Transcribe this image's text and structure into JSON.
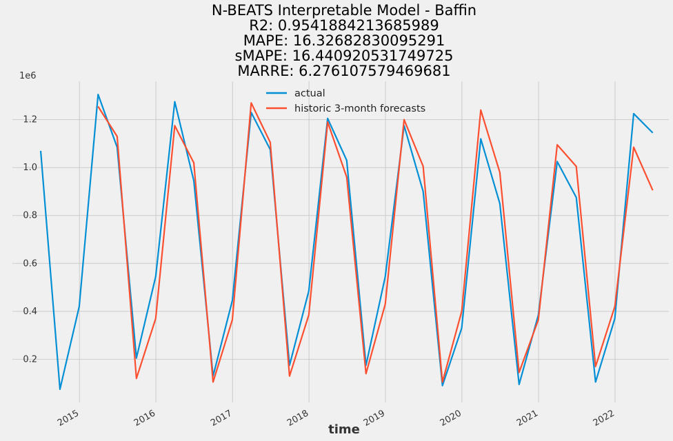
{
  "chart_data": {
    "type": "line",
    "title_lines": [
      "N-BEATS Interpretable Model - Baffin",
      "R2: 0.9541884213685989",
      "MAPE: 16.32682830095291",
      "sMAPE: 16.440920531749725",
      "MARRE: 6.276107579469681"
    ],
    "xlabel": "time",
    "ylabel": "",
    "y_offset_label": "1e6",
    "y_scale": 1000000,
    "ylim": [
      0.02,
      1.36
    ],
    "xlim": [
      "2014-02-15",
      "2022-09-15"
    ],
    "y_ticks": [
      "0.2",
      "0.4",
      "0.6",
      "0.8",
      "1.0",
      "1.2"
    ],
    "x_ticks": [
      "2015",
      "2016",
      "2017",
      "2018",
      "2019",
      "2020",
      "2021",
      "2022"
    ],
    "grid": true,
    "legend_position": "top-center",
    "colors": {
      "actual": "#008fd5",
      "forecast": "#fc4f30",
      "background": "#f0f0f0",
      "grid": "#cbcbcb"
    },
    "series": [
      {
        "name": "actual",
        "color": "#008fd5",
        "points": [
          [
            "2014-06-30",
            1070000
          ],
          [
            "2014-09-30",
            75000
          ],
          [
            "2014-12-31",
            420000
          ],
          [
            "2015-03-31",
            1305000
          ],
          [
            "2015-06-30",
            1085000
          ],
          [
            "2015-09-30",
            205000
          ],
          [
            "2015-12-31",
            545000
          ],
          [
            "2016-03-31",
            1275000
          ],
          [
            "2016-06-30",
            945000
          ],
          [
            "2016-09-30",
            130000
          ],
          [
            "2016-12-31",
            445000
          ],
          [
            "2017-03-31",
            1230000
          ],
          [
            "2017-06-30",
            1075000
          ],
          [
            "2017-09-30",
            175000
          ],
          [
            "2017-12-31",
            485000
          ],
          [
            "2018-03-31",
            1205000
          ],
          [
            "2018-06-30",
            1030000
          ],
          [
            "2018-09-30",
            175000
          ],
          [
            "2018-12-31",
            545000
          ],
          [
            "2019-03-31",
            1175000
          ],
          [
            "2019-06-30",
            900000
          ],
          [
            "2019-09-30",
            90000
          ],
          [
            "2019-12-31",
            330000
          ],
          [
            "2020-03-31",
            1120000
          ],
          [
            "2020-06-30",
            850000
          ],
          [
            "2020-09-30",
            95000
          ],
          [
            "2020-12-31",
            385000
          ],
          [
            "2021-03-31",
            1025000
          ],
          [
            "2021-06-30",
            875000
          ],
          [
            "2021-09-30",
            105000
          ],
          [
            "2021-12-31",
            370000
          ],
          [
            "2022-03-31",
            1225000
          ],
          [
            "2022-06-30",
            1145000
          ]
        ]
      },
      {
        "name": "historic 3-month forecasts",
        "color": "#fc4f30",
        "points": [
          [
            "2015-03-31",
            1255000
          ],
          [
            "2015-06-30",
            1130000
          ],
          [
            "2015-09-30",
            120000
          ],
          [
            "2015-12-31",
            370000
          ],
          [
            "2016-03-31",
            1175000
          ],
          [
            "2016-06-30",
            1020000
          ],
          [
            "2016-09-30",
            105000
          ],
          [
            "2016-12-31",
            365000
          ],
          [
            "2017-03-31",
            1270000
          ],
          [
            "2017-06-30",
            1105000
          ],
          [
            "2017-09-30",
            130000
          ],
          [
            "2017-12-31",
            385000
          ],
          [
            "2018-03-31",
            1190000
          ],
          [
            "2018-06-30",
            960000
          ],
          [
            "2018-09-30",
            140000
          ],
          [
            "2018-12-31",
            430000
          ],
          [
            "2019-03-31",
            1200000
          ],
          [
            "2019-06-30",
            1005000
          ],
          [
            "2019-09-30",
            105000
          ],
          [
            "2019-12-31",
            400000
          ],
          [
            "2020-03-31",
            1240000
          ],
          [
            "2020-06-30",
            980000
          ],
          [
            "2020-09-30",
            145000
          ],
          [
            "2020-12-31",
            365000
          ],
          [
            "2021-03-31",
            1095000
          ],
          [
            "2021-06-30",
            1005000
          ],
          [
            "2021-09-30",
            170000
          ],
          [
            "2021-12-31",
            420000
          ],
          [
            "2022-03-31",
            1085000
          ],
          [
            "2022-06-30",
            905000
          ]
        ]
      }
    ]
  }
}
